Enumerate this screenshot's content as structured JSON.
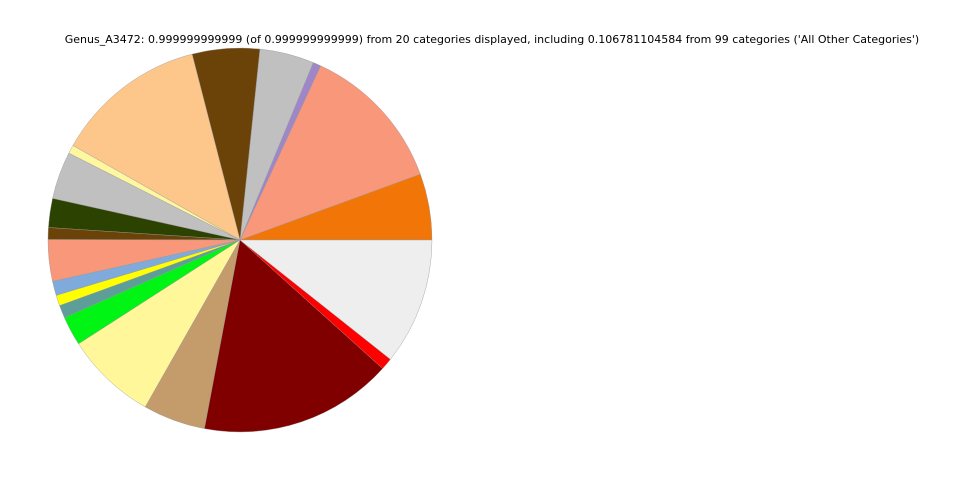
{
  "chart_data": {
    "type": "pie",
    "title": "Genus_A3472: 0.999999999999 (of 0.999999999999) from 20 categories displayed, including 0.106781104584 from 99 categories ('All Other Categories')",
    "start_angle_deg": 0,
    "direction": "counterclockwise",
    "legend": "none",
    "slices": [
      {
        "value": 0.0558,
        "color": "#f27507"
      },
      {
        "value": 0.1253,
        "color": "#f8977a"
      },
      {
        "value": 0.0067,
        "color": "#9e86c8"
      },
      {
        "value": 0.0458,
        "color": "#c0c0c0"
      },
      {
        "value": 0.0567,
        "color": "#6b4309"
      },
      {
        "value": 0.128,
        "color": "#fdc78c"
      },
      {
        "value": 0.0072,
        "color": "#fff6a0"
      },
      {
        "value": 0.04,
        "color": "#c0c0c0"
      },
      {
        "value": 0.0244,
        "color": "#2b4200"
      },
      {
        "value": 0.01,
        "color": "#6b4309"
      },
      {
        "value": 0.035,
        "color": "#f8977a"
      },
      {
        "value": 0.012,
        "color": "#7eabdb"
      },
      {
        "value": 0.0089,
        "color": "#ffff00"
      },
      {
        "value": 0.0108,
        "color": "#5d9e99"
      },
      {
        "value": 0.0247,
        "color": "#00f514"
      },
      {
        "value": 0.0769,
        "color": "#fff79a"
      },
      {
        "value": 0.0525,
        "color": "#c49c6b"
      },
      {
        "value": 0.163,
        "color": "#800000"
      },
      {
        "value": 0.01,
        "color": "#ff0000"
      },
      {
        "value": 0.1068,
        "color": "#eeeeee",
        "label": "All Other Categories"
      }
    ]
  }
}
